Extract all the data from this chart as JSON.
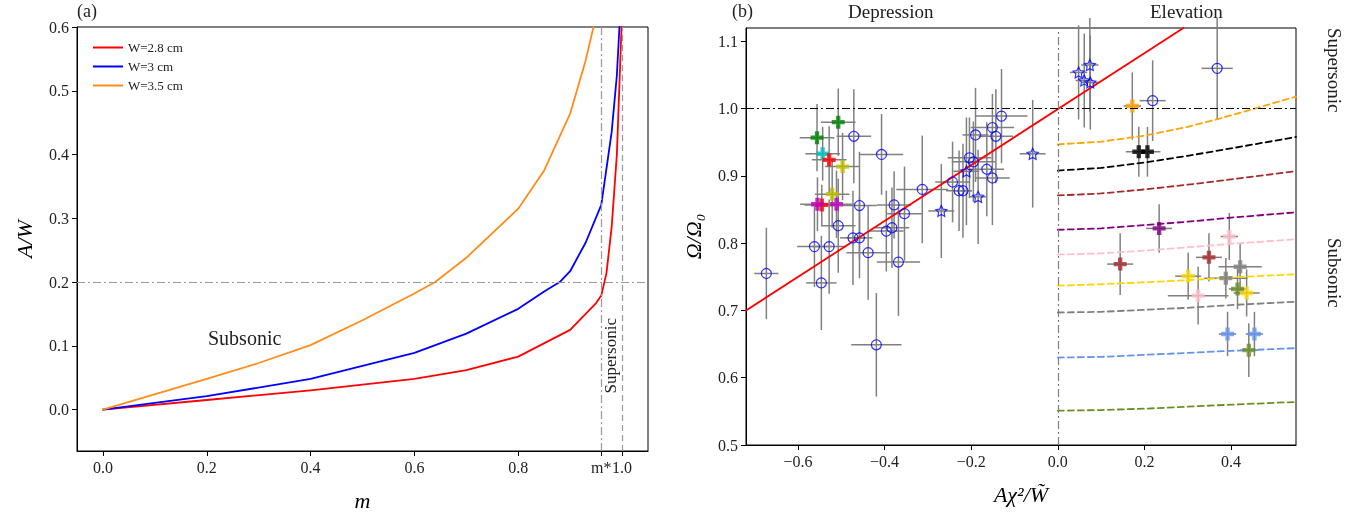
{
  "chart_data": [
    {
      "type": "line",
      "xlabel": "m",
      "ylabel": "A/W",
      "xlim": [
        -0.05,
        1.05
      ],
      "ylim": [
        -0.065,
        0.6
      ],
      "xticks": [
        {
          "value": 0,
          "label": "0.0"
        },
        {
          "value": 0.2,
          "label": "0.2"
        },
        {
          "value": 0.4,
          "label": "0.4"
        },
        {
          "value": 0.6,
          "label": "0.6"
        },
        {
          "value": 0.8,
          "label": "0.8"
        },
        {
          "value": 0.96,
          "label": "m*"
        },
        {
          "value": 1,
          "label": "1.0"
        }
      ],
      "yticks": [
        {
          "value": 0,
          "label": "0.0"
        },
        {
          "value": 0.1,
          "label": "0.1"
        },
        {
          "value": 0.2,
          "label": "0.2"
        },
        {
          "value": 0.3,
          "label": "0.3"
        },
        {
          "value": 0.4,
          "label": "0.4"
        },
        {
          "value": 0.5,
          "label": "0.5"
        },
        {
          "value": 0.6,
          "label": "0.6"
        }
      ],
      "legend": "top left",
      "marker": "none",
      "line_style": "solid",
      "series": [
        {
          "name": "W=2.8 cm",
          "color": "#ff0000",
          "x": [
            0,
            0.2,
            0.4,
            0.6,
            0.7,
            0.8,
            0.9,
            0.95,
            0.96,
            0.97,
            0.98,
            0.99,
            0.999
          ],
          "values": [
            0,
            0.015,
            0.03,
            0.048,
            0.062,
            0.083,
            0.125,
            0.167,
            0.179,
            0.214,
            0.286,
            0.4,
            0.6
          ]
        },
        {
          "name": "W=3 cm",
          "color": "#0000ff",
          "x": [
            0,
            0.2,
            0.4,
            0.6,
            0.7,
            0.8,
            0.85,
            0.88,
            0.9,
            0.93,
            0.96,
            0.98,
            0.99,
            0.995
          ],
          "values": [
            0,
            0.021,
            0.048,
            0.089,
            0.119,
            0.158,
            0.185,
            0.2,
            0.217,
            0.262,
            0.321,
            0.435,
            0.524,
            0.6
          ]
        },
        {
          "name": "W=3.5 cm",
          "color": "#ff8c1a",
          "x": [
            0,
            0.2,
            0.3,
            0.4,
            0.5,
            0.6,
            0.64,
            0.7,
            0.8,
            0.85,
            0.9,
            0.93,
            0.945
          ],
          "values": [
            0,
            0.048,
            0.073,
            0.101,
            0.14,
            0.182,
            0.2,
            0.238,
            0.315,
            0.375,
            0.464,
            0.548,
            0.6
          ]
        }
      ],
      "ref_lines": [
        {
          "axis": "y",
          "value": 0.2,
          "color": "#999999",
          "line_style": "dashdot"
        },
        {
          "axis": "x",
          "value": 0.96,
          "color": "#999999",
          "line_style": "dashdot"
        },
        {
          "axis": "x",
          "value": 1,
          "color": "#999999",
          "line_style": "dashed"
        }
      ],
      "annotations": [
        "(a)",
        "Subsonic",
        "Supersonic"
      ]
    },
    {
      "type": "scatter",
      "xlabel": "Aχ²/W̃",
      "ylabel": "Ω/Ω₀",
      "xlim": [
        -0.72,
        0.55
      ],
      "ylim": [
        0.5,
        1.12
      ],
      "xticks": [
        {
          "value": -0.6,
          "label": "−0.6"
        },
        {
          "value": -0.4,
          "label": "−0.4"
        },
        {
          "value": -0.2,
          "label": "−0.2"
        },
        {
          "value": 0,
          "label": "0.0"
        },
        {
          "value": 0.2,
          "label": "0.2"
        },
        {
          "value": 0.4,
          "label": "0.4"
        }
      ],
      "yticks": [
        {
          "value": 0.5,
          "label": "0.5"
        },
        {
          "value": 0.6,
          "label": "0.6"
        },
        {
          "value": 0.7,
          "label": "0.7"
        },
        {
          "value": 0.8,
          "label": "0.8"
        },
        {
          "value": 0.9,
          "label": "0.9"
        },
        {
          "value": 1.0,
          "label": "1.0"
        },
        {
          "value": 1.1,
          "label": "1.1"
        }
      ],
      "series": [
        {
          "type": "line",
          "line_style": "dashed",
          "color": "#ffa500",
          "x": [
            0,
            0.1,
            0.2,
            0.3,
            0.4,
            0.55
          ],
          "values": [
            0.947,
            0.951,
            0.96,
            0.973,
            0.99,
            1.018
          ]
        },
        {
          "type": "line",
          "line_style": "dashed",
          "color": "#000000",
          "x": [
            0,
            0.1,
            0.2,
            0.3,
            0.4,
            0.55
          ],
          "values": [
            0.908,
            0.912,
            0.92,
            0.93,
            0.941,
            0.958
          ]
        },
        {
          "type": "line",
          "line_style": "dashed",
          "color": "#a52a2a",
          "x": [
            0,
            0.1,
            0.2,
            0.3,
            0.4,
            0.55
          ],
          "values": [
            0.871,
            0.874,
            0.88,
            0.887,
            0.895,
            0.907
          ]
        },
        {
          "type": "line",
          "line_style": "dashed",
          "color": "#800080",
          "x": [
            0,
            0.1,
            0.2,
            0.3,
            0.4,
            0.55
          ],
          "values": [
            0.82,
            0.822,
            0.827,
            0.832,
            0.838,
            0.846
          ]
        },
        {
          "type": "line",
          "line_style": "dashed",
          "color": "#ffc0cb",
          "x": [
            0,
            0.1,
            0.2,
            0.3,
            0.4,
            0.55
          ],
          "values": [
            0.783,
            0.785,
            0.789,
            0.794,
            0.799,
            0.806
          ]
        },
        {
          "type": "line",
          "line_style": "dashed",
          "color": "#ffd700",
          "x": [
            0,
            0.1,
            0.2,
            0.3,
            0.4,
            0.55
          ],
          "values": [
            0.737,
            0.739,
            0.742,
            0.745,
            0.749,
            0.754
          ]
        },
        {
          "type": "line",
          "line_style": "dashed",
          "color": "#808080",
          "x": [
            0,
            0.1,
            0.2,
            0.3,
            0.4,
            0.55
          ],
          "values": [
            0.697,
            0.698,
            0.701,
            0.704,
            0.708,
            0.713
          ]
        },
        {
          "type": "line",
          "line_style": "dashed",
          "color": "#6495ed",
          "x": [
            0,
            0.1,
            0.2,
            0.3,
            0.4,
            0.55
          ],
          "values": [
            0.63,
            0.631,
            0.634,
            0.637,
            0.64,
            0.644
          ]
        },
        {
          "type": "line",
          "line_style": "dashed",
          "color": "#6b8e23",
          "x": [
            0,
            0.1,
            0.2,
            0.3,
            0.4,
            0.55
          ],
          "values": [
            0.551,
            0.552,
            0.554,
            0.557,
            0.56,
            0.564
          ]
        },
        {
          "type": "line",
          "line_style": "solid",
          "color": "#ff0000",
          "x": [
            -0.72,
            0.29
          ],
          "values": [
            0.7,
            1.12
          ]
        },
        {
          "marker": "circle",
          "color": "#0000ff",
          "x": [
            -0.673,
            -0.562,
            -0.546,
            -0.528,
            -0.507,
            -0.471,
            -0.458,
            -0.473,
            -0.458,
            -0.438,
            -0.419,
            -0.407,
            -0.396,
            -0.383,
            -0.378,
            -0.368,
            -0.354,
            -0.313,
            -0.243,
            -0.228,
            -0.219,
            -0.204,
            -0.195,
            -0.19,
            -0.164,
            -0.151,
            -0.151,
            -0.143,
            -0.13,
            0.368,
            0.219
          ],
          "values": [
            0.755,
            0.795,
            0.741,
            0.795,
            0.826,
            0.959,
            0.856,
            0.808,
            0.808,
            0.786,
            0.649,
            0.932,
            0.818,
            0.823,
            0.857,
            0.772,
            0.844,
            0.88,
            0.891,
            0.878,
            0.878,
            0.927,
            0.921,
            0.961,
            0.91,
            0.972,
            0.897,
            0.959,
            0.989,
            1.06,
            1.012
          ],
          "errors": [
            0.068,
            0.06,
            0.07,
            0.07,
            0.07,
            0.07,
            0.08,
            0.07,
            0.06,
            0.07,
            0.077,
            0.06,
            0.06,
            0.06,
            0.05,
            0.08,
            0.07,
            0.08,
            0.06,
            0.06,
            0.07,
            0.06,
            0.06,
            0.07,
            0.07,
            0.05,
            0.07,
            0.07,
            0.07,
            0.075,
            0.06
          ],
          "xerrors": [
            0.028,
            0.04,
            0.035,
            0.04,
            0.04,
            0.04,
            0.04,
            0.03,
            0.03,
            0.05,
            0.058,
            0.05,
            0.04,
            0.04,
            0.04,
            0.05,
            0.04,
            0.06,
            0.04,
            0.03,
            0.02,
            0.05,
            0.05,
            0.03,
            0.04,
            0.05,
            0.04,
            0.04,
            0.06,
            0.036,
            0.03
          ]
        },
        {
          "marker": "star",
          "color": "#0000ff",
          "x": [
            -0.269,
            -0.211,
            -0.184,
            -0.058,
            0.048,
            0.074,
            0.061,
            0.075
          ],
          "values": [
            0.848,
            0.907,
            0.869,
            0.933,
            1.054,
            1.065,
            1.042,
            1.039
          ],
          "errors": [
            0.07,
            0.08,
            0.07,
            0.08,
            0.07,
            0.07,
            0.07,
            0.07
          ],
          "xerrors": [
            0.03,
            0.03,
            0.02,
            0.03,
            0.02,
            0.02,
            0.02,
            0.02
          ]
        },
        {
          "marker": "cross",
          "color": "#008000",
          "x": [
            -0.556,
            -0.507
          ],
          "values": [
            0.957,
            0.98
          ],
          "errors": [
            0.05,
            0.05
          ],
          "xerrors": [
            0.04,
            0.04
          ]
        },
        {
          "marker": "cross",
          "color": "#00bfbf",
          "x": [
            -0.543
          ],
          "values": [
            0.933
          ],
          "errors": [
            0.04
          ],
          "xerrors": [
            0.04
          ]
        },
        {
          "marker": "cross",
          "color": "#ff0000",
          "x": [
            -0.528,
            -0.545
          ],
          "values": [
            0.924,
            0.857
          ],
          "errors": [
            0.05,
            0.03
          ],
          "xerrors": [
            0.04,
            0.04
          ]
        },
        {
          "marker": "cross",
          "color": "#bfbf00",
          "x": [
            -0.497,
            -0.521
          ],
          "values": [
            0.914,
            0.873
          ],
          "errors": [
            0.05,
            0.05
          ],
          "xerrors": [
            0.04,
            0.04
          ]
        },
        {
          "marker": "cross",
          "color": "#bf00bf",
          "x": [
            -0.555,
            -0.511
          ],
          "values": [
            0.858,
            0.858
          ],
          "errors": [
            0.04,
            0.05
          ],
          "xerrors": [
            0.04,
            0.04
          ]
        },
        {
          "marker": "cross",
          "color": "#ffa500",
          "x": [
            0.172
          ],
          "values": [
            1.004
          ],
          "errors": [
            0.05
          ],
          "xerrors": [
            0.02
          ]
        },
        {
          "marker": "cross",
          "color": "#000000",
          "x": [
            0.187,
            0.207
          ],
          "values": [
            0.936,
            0.936
          ],
          "errors": [
            0.037,
            0.037
          ],
          "xerrors": [
            0.03,
            0.03
          ]
        },
        {
          "marker": "cross",
          "color": "#800080",
          "x": [
            0.234
          ],
          "values": [
            0.822
          ],
          "errors": [
            0.036
          ],
          "xerrors": [
            0.03
          ]
        },
        {
          "marker": "cross",
          "color": "#a52a2a",
          "x": [
            0.144,
            0.349
          ],
          "values": [
            0.769,
            0.779
          ],
          "errors": [
            0.046,
            0.036
          ],
          "xerrors": [
            0.03,
            0.03
          ]
        },
        {
          "marker": "cross",
          "color": "#ffc0cb",
          "x": [
            0.396,
            0.324
          ],
          "values": [
            0.81,
            0.722
          ],
          "errors": [
            0.035,
            0.043
          ],
          "xerrors": [
            0.02,
            0.07
          ]
        },
        {
          "marker": "cross",
          "color": "#ffd700",
          "x": [
            0.301,
            0.436
          ],
          "values": [
            0.751,
            0.726
          ],
          "errors": [
            0.035,
            0.035
          ],
          "xerrors": [
            0.03,
            0.03
          ]
        },
        {
          "marker": "cross",
          "color": "#808080",
          "x": [
            0.388,
            0.421
          ],
          "values": [
            0.748,
            0.765
          ],
          "errors": [
            0.03,
            0.035
          ],
          "xerrors": [
            0.05,
            0.05
          ]
        },
        {
          "marker": "cross",
          "color": "#6b8e23",
          "x": [
            0.415,
            0.441
          ],
          "values": [
            0.732,
            0.641
          ],
          "errors": [
            0.03,
            0.04
          ],
          "xerrors": [
            0.02,
            0.02
          ]
        },
        {
          "marker": "cross",
          "color": "#6495ed",
          "x": [
            0.392,
            0.454
          ],
          "values": [
            0.665,
            0.665
          ],
          "errors": [
            0.033,
            0.033
          ],
          "xerrors": [
            0.02,
            0.02
          ]
        }
      ],
      "ref_lines": [
        {
          "axis": "y",
          "value": 1.0,
          "color": "#000000",
          "line_style": "dashdot"
        },
        {
          "axis": "x",
          "value": 0,
          "color": "#808080",
          "line_style": "dashdot"
        }
      ],
      "annotations": [
        "(b)",
        "Depression",
        "Elevation",
        "Supersonic",
        "Subsonic"
      ]
    }
  ]
}
